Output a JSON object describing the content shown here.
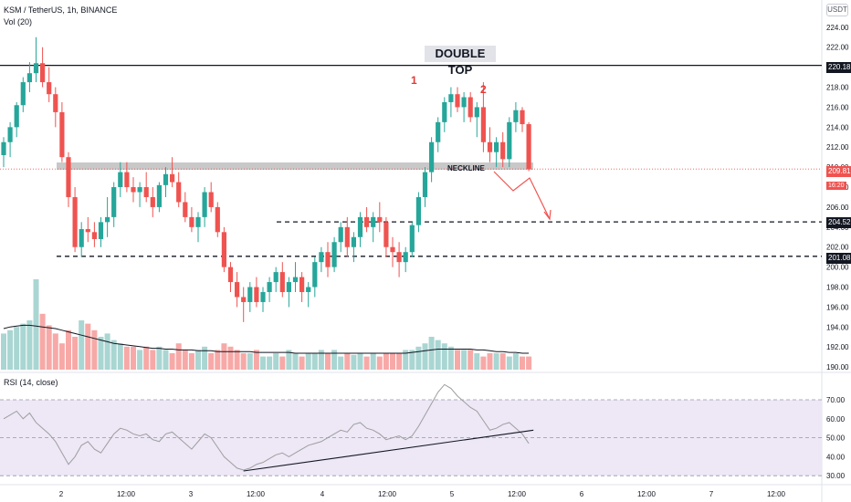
{
  "header": {
    "symbol_line": "KSM / TetherUS, 1h, BINANCE",
    "vol_label": "Vol (20)",
    "rsi_label": "RSI (14, close)",
    "currency": "USDT"
  },
  "annotations": {
    "pattern_title": "DOUBLE TOP",
    "peak1": "1",
    "peak2": "2",
    "neckline": "NECKLINE"
  },
  "price_labels": {
    "resistance": "220.18",
    "current": "209.81",
    "countdown": "16:20",
    "target1": "204.52",
    "target2": "201.08"
  },
  "colors": {
    "up": "#26a69a",
    "down": "#ef5350",
    "vol_up": "#a9d6d2",
    "vol_down": "#f7a9a7",
    "rsi_band": "#ede7f6",
    "arrow": "#ef5350"
  },
  "chart_data": {
    "type": "candlestick",
    "symbol": "KSM / TetherUS",
    "interval": "1h",
    "exchange": "BINANCE",
    "price_axis": {
      "ticks": [
        "224.00",
        "222.00",
        "220.00",
        "218.00",
        "216.00",
        "214.00",
        "212.00",
        "210.00",
        "208.00",
        "206.00",
        "204.00",
        "202.00",
        "200.00",
        "198.00",
        "196.00",
        "194.00",
        "192.00",
        "190.00"
      ],
      "range": [
        189.4,
        225.4
      ]
    },
    "time_axis": {
      "ticks": [
        "2",
        "12:00",
        "3",
        "12:00",
        "4",
        "12:00",
        "5",
        "12:00",
        "6",
        "12:00",
        "7",
        "12:00"
      ]
    },
    "levels": {
      "resistance": 220.18,
      "target1": 204.52,
      "target2": 201.08,
      "neckline": 210.0
    },
    "ohlc": [
      [
        211.2,
        213.0,
        210.0,
        212.5
      ],
      [
        212.5,
        214.5,
        211.0,
        214.0
      ],
      [
        214.0,
        216.5,
        213.0,
        216.2
      ],
      [
        216.2,
        219.0,
        215.5,
        218.5
      ],
      [
        218.5,
        220.5,
        217.5,
        219.4
      ],
      [
        219.4,
        223.0,
        218.5,
        220.4
      ],
      [
        220.4,
        222.0,
        218.0,
        218.5
      ],
      [
        218.5,
        220.0,
        216.5,
        217.3
      ],
      [
        217.3,
        218.0,
        214.0,
        215.5
      ],
      [
        215.5,
        216.5,
        210.5,
        211.0
      ],
      [
        211.0,
        211.5,
        206.0,
        207.0
      ],
      [
        207.0,
        208.0,
        201.5,
        202.0
      ],
      [
        202.0,
        204.5,
        201.0,
        203.8
      ],
      [
        203.8,
        205.0,
        202.5,
        203.5
      ],
      [
        203.5,
        204.5,
        202.0,
        202.8
      ],
      [
        202.8,
        205.0,
        202.0,
        204.5
      ],
      [
        204.5,
        207.0,
        203.0,
        205.0
      ],
      [
        205.0,
        208.5,
        204.0,
        208.0
      ],
      [
        208.0,
        210.5,
        207.0,
        209.5
      ],
      [
        209.5,
        210.5,
        207.5,
        208.0
      ],
      [
        208.0,
        209.0,
        206.5,
        207.5
      ],
      [
        207.5,
        208.5,
        206.0,
        208.0
      ],
      [
        208.0,
        209.5,
        206.5,
        207.0
      ],
      [
        207.0,
        208.0,
        205.0,
        206.0
      ],
      [
        206.0,
        208.5,
        205.5,
        208.2
      ],
      [
        208.2,
        210.0,
        207.0,
        209.3
      ],
      [
        209.3,
        211.0,
        208.0,
        208.5
      ],
      [
        208.5,
        209.5,
        206.0,
        206.5
      ],
      [
        206.5,
        207.5,
        204.5,
        205.0
      ],
      [
        205.0,
        206.0,
        203.5,
        204.0
      ],
      [
        204.0,
        205.5,
        202.5,
        205.0
      ],
      [
        205.0,
        208.0,
        204.0,
        207.5
      ],
      [
        207.5,
        208.5,
        205.5,
        206.0
      ],
      [
        206.0,
        206.5,
        203.0,
        203.5
      ],
      [
        203.5,
        204.0,
        199.5,
        200.0
      ],
      [
        200.0,
        200.5,
        197.5,
        198.5
      ],
      [
        198.5,
        199.5,
        196.0,
        197.0
      ],
      [
        197.0,
        198.0,
        194.5,
        196.5
      ],
      [
        196.5,
        198.5,
        195.5,
        198.0
      ],
      [
        198.0,
        199.0,
        196.0,
        196.5
      ],
      [
        196.5,
        198.0,
        195.5,
        197.5
      ],
      [
        197.5,
        199.0,
        196.5,
        198.5
      ],
      [
        198.5,
        200.0,
        197.5,
        199.5
      ],
      [
        199.5,
        200.5,
        197.0,
        197.5
      ],
      [
        197.5,
        199.0,
        196.0,
        198.5
      ],
      [
        198.5,
        200.5,
        197.5,
        199.0
      ],
      [
        199.0,
        199.5,
        196.5,
        197.5
      ],
      [
        197.5,
        198.5,
        196.0,
        198.0
      ],
      [
        198.0,
        201.0,
        197.0,
        200.5
      ],
      [
        200.5,
        202.0,
        199.5,
        201.5
      ],
      [
        201.5,
        202.5,
        199.0,
        200.0
      ],
      [
        200.0,
        203.0,
        199.5,
        202.5
      ],
      [
        202.5,
        204.5,
        201.5,
        204.0
      ],
      [
        204.0,
        205.0,
        201.0,
        202.0
      ],
      [
        202.0,
        203.5,
        200.5,
        203.0
      ],
      [
        203.0,
        205.5,
        202.0,
        205.0
      ],
      [
        205.0,
        206.0,
        203.5,
        204.0
      ],
      [
        204.0,
        205.5,
        202.5,
        205.0
      ],
      [
        205.0,
        206.5,
        203.5,
        204.5
      ],
      [
        204.5,
        205.0,
        201.0,
        202.0
      ],
      [
        202.0,
        203.0,
        200.0,
        201.5
      ],
      [
        201.5,
        202.5,
        199.0,
        200.5
      ],
      [
        200.5,
        202.0,
        199.5,
        201.5
      ],
      [
        201.5,
        204.5,
        201.0,
        204.2
      ],
      [
        204.2,
        207.5,
        203.5,
        207.0
      ],
      [
        207.0,
        210.0,
        206.0,
        209.5
      ],
      [
        209.5,
        213.0,
        208.5,
        212.5
      ],
      [
        212.5,
        215.0,
        211.5,
        214.5
      ],
      [
        214.5,
        217.0,
        213.5,
        216.5
      ],
      [
        216.5,
        218.0,
        215.0,
        217.3
      ],
      [
        217.3,
        218.0,
        215.5,
        216.0
      ],
      [
        216.0,
        217.5,
        214.5,
        217.0
      ],
      [
        217.0,
        217.5,
        214.5,
        215.0
      ],
      [
        215.0,
        216.5,
        213.0,
        216.0
      ],
      [
        216.0,
        218.5,
        211.5,
        212.5
      ],
      [
        212.5,
        214.0,
        210.5,
        211.5
      ],
      [
        211.5,
        213.0,
        210.0,
        212.5
      ],
      [
        212.5,
        213.5,
        210.0,
        210.8
      ],
      [
        210.8,
        215.0,
        210.0,
        214.5
      ],
      [
        214.5,
        216.5,
        213.5,
        215.7
      ],
      [
        215.7,
        216.0,
        213.5,
        214.3
      ],
      [
        214.3,
        214.5,
        209.6,
        209.8
      ]
    ],
    "volume": [
      22,
      24,
      26,
      28,
      30,
      55,
      34,
      27,
      22,
      16,
      24,
      20,
      30,
      28,
      24,
      20,
      22,
      18,
      16,
      14,
      14,
      12,
      14,
      12,
      14,
      12,
      10,
      16,
      12,
      10,
      12,
      14,
      10,
      12,
      16,
      14,
      12,
      10,
      10,
      12,
      8,
      8,
      10,
      8,
      12,
      10,
      8,
      10,
      10,
      12,
      10,
      12,
      8,
      10,
      9,
      10,
      8,
      10,
      8,
      10,
      10,
      10,
      12,
      12,
      14,
      16,
      20,
      18,
      16,
      14,
      12,
      12,
      12,
      10,
      8,
      10,
      10,
      10,
      8,
      10,
      8,
      8
    ],
    "volume_ma": [
      25,
      26,
      26.5,
      27,
      27,
      26.5,
      26,
      25.5,
      25,
      24,
      23,
      22,
      21,
      20,
      19,
      18,
      17,
      16,
      15.5,
      15,
      14.5,
      14,
      13.5,
      13,
      13,
      12.5,
      12.5,
      12,
      12,
      12,
      11.5,
      11.5,
      11.5,
      11,
      11,
      11,
      11,
      11,
      11,
      10.5,
      10.5,
      10.5,
      10.5,
      10.5,
      10.5,
      10,
      10,
      10,
      10,
      10,
      10,
      10,
      10,
      10,
      10,
      10,
      10,
      10,
      10,
      10,
      10,
      10,
      10,
      10.5,
      11,
      11.5,
      12,
      12.5,
      12.5,
      12.5,
      12.5,
      12.5,
      12.5,
      12,
      12,
      11.5,
      11,
      11,
      10.5,
      10.5,
      10,
      10
    ],
    "rsi": {
      "ticks": [
        "70.00",
        "60.00",
        "50.00",
        "40.00",
        "30.00"
      ],
      "band": [
        30,
        70
      ],
      "values": [
        60,
        62,
        64,
        60,
        63,
        58,
        55,
        52,
        48,
        42,
        36,
        40,
        46,
        48,
        44,
        42,
        47,
        52,
        55,
        54,
        52,
        51,
        52,
        49,
        48,
        52,
        53,
        50,
        47,
        44,
        48,
        52,
        50,
        45,
        40,
        37,
        34,
        33,
        34,
        36,
        37,
        39,
        41,
        42,
        40,
        42,
        44,
        46,
        47,
        48,
        50,
        52,
        54,
        53,
        57,
        58,
        55,
        54,
        52,
        49,
        50,
        51,
        49,
        51,
        56,
        62,
        68,
        74,
        78,
        76,
        72,
        69,
        66,
        64,
        59,
        54,
        55,
        57,
        58,
        55,
        52,
        47
      ],
      "trendline": [
        [
          37,
          32.5
        ],
        [
          82,
          54
        ]
      ]
    }
  }
}
